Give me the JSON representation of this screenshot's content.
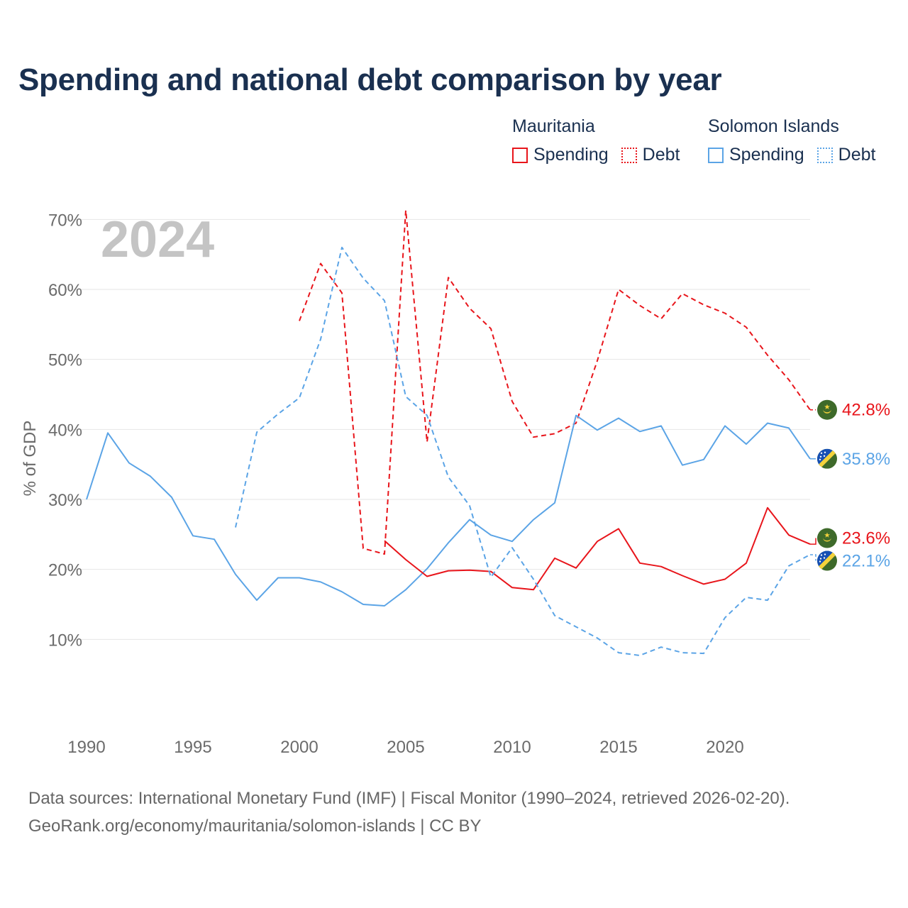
{
  "title": "Spending and national debt comparison by year",
  "legend": {
    "groups": [
      {
        "country": "Mauritania",
        "color": "#e8151b",
        "items": [
          {
            "label": "Spending",
            "style": "solid"
          },
          {
            "label": "Debt",
            "style": "dotted"
          }
        ]
      },
      {
        "country": "Solomon Islands",
        "color": "#5ba4e6",
        "items": [
          {
            "label": "Spending",
            "style": "solid"
          },
          {
            "label": "Debt",
            "style": "dotted"
          }
        ]
      }
    ]
  },
  "chart_data": {
    "type": "line",
    "year_label": "2024",
    "ylabel": "% of GDP",
    "xlabel": "",
    "xlim": [
      1990,
      2024
    ],
    "ylim": [
      0,
      75
    ],
    "x_ticks": [
      1990,
      1995,
      2000,
      2005,
      2010,
      2015,
      2020
    ],
    "y_ticks": [
      10,
      20,
      30,
      40,
      50,
      60,
      70
    ],
    "y_tick_labels": [
      "10%",
      "20%",
      "30%",
      "40%",
      "50%",
      "60%",
      "70%"
    ],
    "grid": true,
    "series": [
      {
        "name": "Mauritania Debt",
        "country": "Mauritania",
        "measure": "Debt",
        "color": "#e8151b",
        "dash": "dashed",
        "x": [
          2000,
          2001,
          2002,
          2003,
          2004,
          2005,
          2006,
          2007,
          2008,
          2009,
          2010,
          2011,
          2012,
          2013,
          2014,
          2015,
          2016,
          2017,
          2018,
          2019,
          2020,
          2021,
          2022,
          2023,
          2024
        ],
        "values": [
          55.5,
          63.7,
          59.5,
          23.0,
          22.2,
          71.3,
          38.2,
          61.7,
          57.3,
          54.4,
          44.0,
          38.9,
          39.4,
          40.9,
          49.8,
          60.0,
          57.7,
          55.8,
          59.4,
          57.8,
          56.6,
          54.6,
          50.6,
          47.1,
          42.8
        ],
        "end_label": "42.8%"
      },
      {
        "name": "Solomon Islands Spending",
        "country": "Solomon Islands",
        "measure": "Spending",
        "color": "#5ba4e6",
        "dash": "solid",
        "x": [
          1990,
          1991,
          1992,
          1993,
          1994,
          1995,
          1996,
          1997,
          1998,
          1999,
          2000,
          2001,
          2002,
          2003,
          2004,
          2005,
          2006,
          2007,
          2008,
          2009,
          2010,
          2011,
          2012,
          2013,
          2014,
          2015,
          2016,
          2017,
          2018,
          2019,
          2020,
          2021,
          2022,
          2023,
          2024
        ],
        "values": [
          30.0,
          39.5,
          35.2,
          33.3,
          30.3,
          24.8,
          24.3,
          19.3,
          15.6,
          18.8,
          18.8,
          18.2,
          16.8,
          15.0,
          14.8,
          17.1,
          20.1,
          23.8,
          27.1,
          24.9,
          24.0,
          27.1,
          29.5,
          42.0,
          39.9,
          41.6,
          39.7,
          40.5,
          34.9,
          35.7,
          40.5,
          37.9,
          40.9,
          40.2,
          35.8
        ],
        "end_label": "35.8%"
      },
      {
        "name": "Mauritania Spending",
        "country": "Mauritania",
        "measure": "Spending",
        "color": "#e8151b",
        "dash": "solid",
        "x": [
          2004,
          2005,
          2006,
          2007,
          2008,
          2009,
          2010,
          2011,
          2012,
          2013,
          2014,
          2015,
          2016,
          2017,
          2018,
          2019,
          2020,
          2021,
          2022,
          2023,
          2024
        ],
        "values": [
          24.1,
          21.4,
          19.0,
          19.8,
          19.9,
          19.7,
          17.4,
          17.1,
          21.6,
          20.2,
          24.0,
          25.8,
          20.9,
          20.4,
          19.1,
          17.9,
          18.6,
          20.9,
          28.8,
          24.9,
          23.6
        ],
        "end_label": "23.6%"
      },
      {
        "name": "Solomon Islands Debt",
        "country": "Solomon Islands",
        "measure": "Debt",
        "color": "#5ba4e6",
        "dash": "dashed",
        "x": [
          1997,
          1998,
          1999,
          2000,
          2001,
          2002,
          2003,
          2004,
          2005,
          2006,
          2007,
          2008,
          2009,
          2010,
          2011,
          2012,
          2013,
          2014,
          2015,
          2016,
          2017,
          2018,
          2019,
          2020,
          2021,
          2022,
          2023,
          2024
        ],
        "values": [
          26.0,
          39.6,
          42.2,
          44.5,
          52.9,
          66.0,
          61.6,
          58.4,
          44.7,
          42.0,
          33.2,
          29.1,
          18.9,
          23.1,
          18.6,
          13.4,
          11.8,
          10.2,
          8.1,
          7.7,
          8.9,
          8.1,
          8.0,
          13.1,
          16.0,
          15.6,
          20.5,
          22.1
        ],
        "end_label": "22.1%"
      }
    ]
  },
  "footer": {
    "line1": "Data sources: International Monetary Fund (IMF) | Fiscal Monitor (1990–2024, retrieved 2026-02-20).",
    "line2": "GeoRank.org/economy/mauritania/solomon-islands | CC BY"
  }
}
